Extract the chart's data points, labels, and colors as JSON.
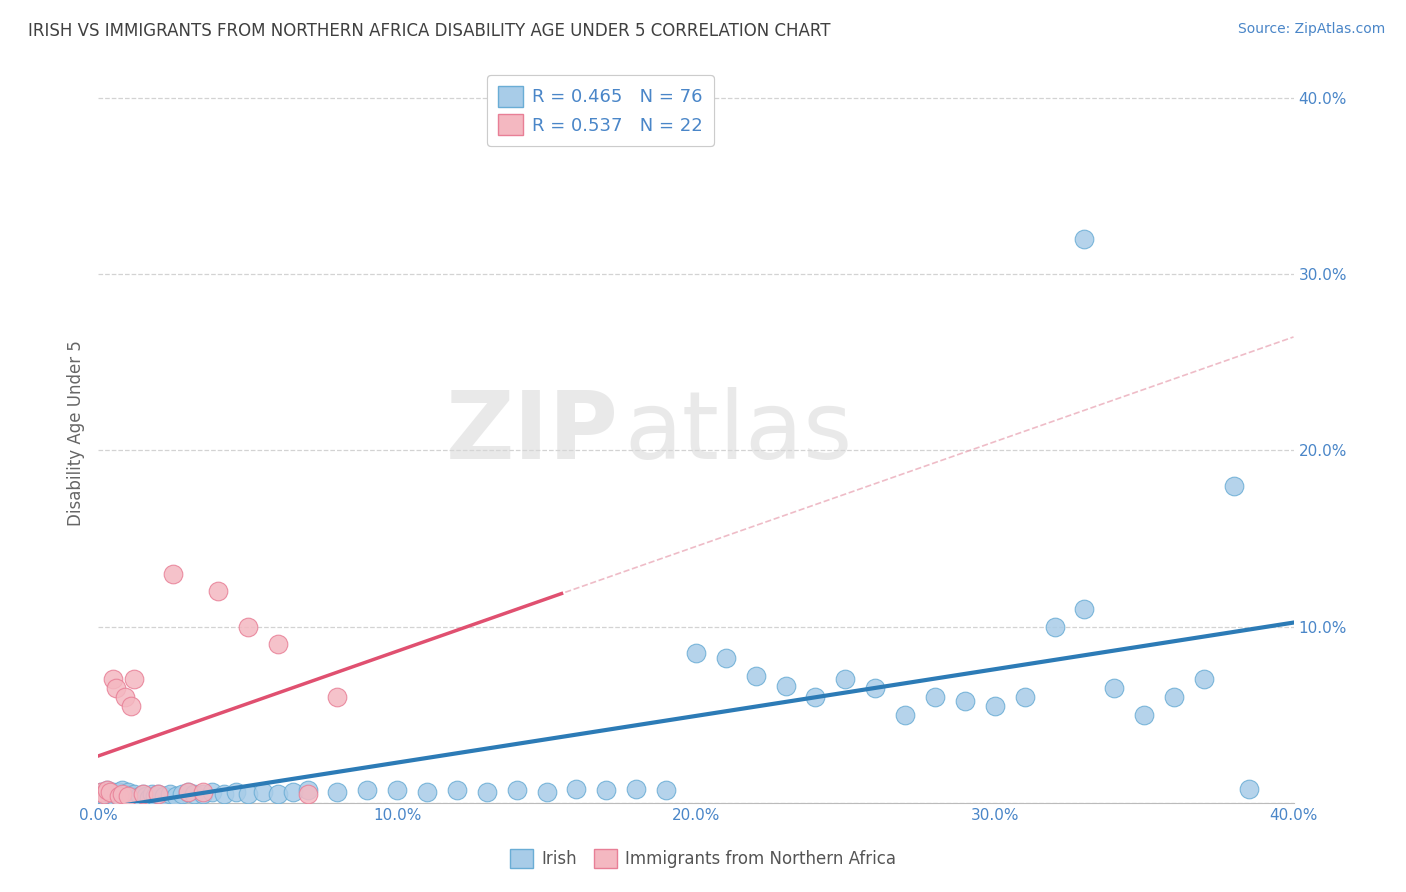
{
  "title": "IRISH VS IMMIGRANTS FROM NORTHERN AFRICA DISABILITY AGE UNDER 5 CORRELATION CHART",
  "source": "Source: ZipAtlas.com",
  "ylabel": "Disability Age Under 5",
  "xlim": [
    0.0,
    0.4
  ],
  "ylim": [
    0.0,
    0.42
  ],
  "xticks": [
    0.0,
    0.1,
    0.2,
    0.3,
    0.4
  ],
  "yticks": [
    0.0,
    0.1,
    0.2,
    0.3,
    0.4
  ],
  "xticklabels": [
    "0.0%",
    "10.0%",
    "20.0%",
    "30.0%",
    "40.0%"
  ],
  "yticklabels": [
    "",
    "10.0%",
    "20.0%",
    "30.0%",
    "40.0%"
  ],
  "blue_color": "#a8cce8",
  "blue_edge_color": "#6aadd5",
  "pink_color": "#f4b8c1",
  "pink_edge_color": "#e87f96",
  "blue_line_color": "#2c7bb6",
  "pink_line_color": "#e05070",
  "pink_dash_color": "#e8a0b0",
  "R_blue": 0.465,
  "N_blue": 76,
  "R_pink": 0.537,
  "N_pink": 22,
  "watermark_zip": "ZIP",
  "watermark_atlas": "atlas",
  "background_color": "#ffffff",
  "grid_color": "#c8c8c8",
  "title_color": "#404040",
  "axis_color": "#4a86c8",
  "tick_color": "#4a86c8",
  "blue_x": [
    0.001,
    0.002,
    0.003,
    0.003,
    0.004,
    0.004,
    0.005,
    0.005,
    0.006,
    0.006,
    0.007,
    0.007,
    0.008,
    0.008,
    0.009,
    0.009,
    0.01,
    0.01,
    0.011,
    0.012,
    0.013,
    0.014,
    0.015,
    0.016,
    0.017,
    0.018,
    0.019,
    0.02,
    0.022,
    0.024,
    0.026,
    0.028,
    0.03,
    0.032,
    0.035,
    0.038,
    0.042,
    0.046,
    0.05,
    0.055,
    0.06,
    0.065,
    0.07,
    0.08,
    0.09,
    0.1,
    0.11,
    0.12,
    0.13,
    0.14,
    0.15,
    0.16,
    0.17,
    0.18,
    0.19,
    0.2,
    0.21,
    0.22,
    0.23,
    0.24,
    0.25,
    0.26,
    0.27,
    0.28,
    0.29,
    0.3,
    0.31,
    0.32,
    0.33,
    0.34,
    0.35,
    0.36,
    0.37,
    0.38,
    0.33,
    0.385
  ],
  "blue_y": [
    0.006,
    0.004,
    0.003,
    0.007,
    0.002,
    0.005,
    0.004,
    0.006,
    0.003,
    0.005,
    0.004,
    0.006,
    0.003,
    0.007,
    0.004,
    0.005,
    0.003,
    0.006,
    0.004,
    0.005,
    0.003,
    0.004,
    0.005,
    0.004,
    0.003,
    0.005,
    0.004,
    0.005,
    0.004,
    0.005,
    0.004,
    0.005,
    0.006,
    0.005,
    0.005,
    0.006,
    0.005,
    0.006,
    0.005,
    0.006,
    0.005,
    0.006,
    0.007,
    0.006,
    0.007,
    0.007,
    0.006,
    0.007,
    0.006,
    0.007,
    0.006,
    0.008,
    0.007,
    0.008,
    0.007,
    0.085,
    0.082,
    0.072,
    0.066,
    0.06,
    0.07,
    0.065,
    0.05,
    0.06,
    0.058,
    0.055,
    0.06,
    0.1,
    0.11,
    0.065,
    0.05,
    0.06,
    0.07,
    0.18,
    0.32,
    0.008
  ],
  "pink_x": [
    0.001,
    0.002,
    0.003,
    0.004,
    0.005,
    0.006,
    0.007,
    0.008,
    0.009,
    0.01,
    0.011,
    0.012,
    0.015,
    0.02,
    0.025,
    0.03,
    0.035,
    0.04,
    0.05,
    0.06,
    0.07,
    0.08
  ],
  "pink_y": [
    0.006,
    0.005,
    0.007,
    0.006,
    0.07,
    0.065,
    0.004,
    0.005,
    0.06,
    0.004,
    0.055,
    0.07,
    0.005,
    0.005,
    0.13,
    0.006,
    0.006,
    0.12,
    0.1,
    0.09,
    0.005,
    0.06
  ]
}
